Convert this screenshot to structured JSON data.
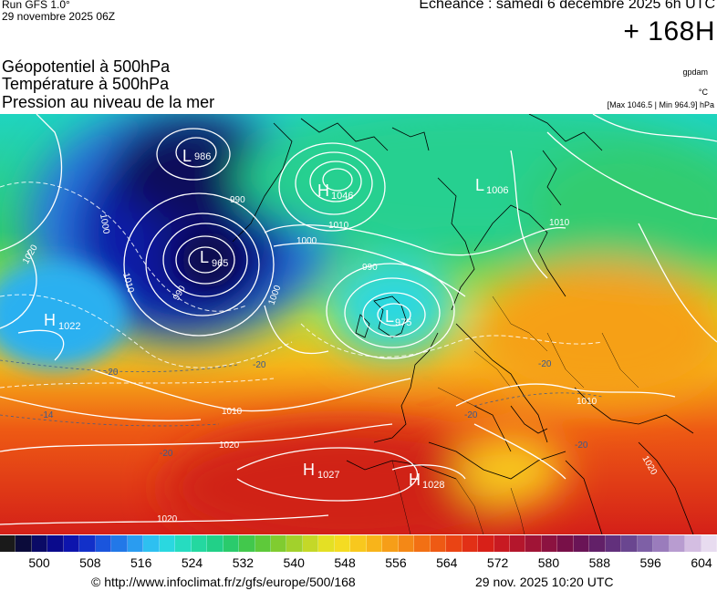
{
  "header": {
    "run": "Run GFS 1.0°",
    "run_date": "29 novembre 2025 06Z",
    "echeance": "Echéance : samedi 6 décembre 2025 6h UTC",
    "horizon": "+ 168H"
  },
  "layers": [
    "Géopotentiel à 500hPa",
    "Température à 500hPa",
    "Pression au niveau de la mer"
  ],
  "units": {
    "geopotential": "gpdam",
    "temperature": "°C",
    "minmax": "[Max 1046.5 | Min 964.9] hPa"
  },
  "pressure_centers": [
    {
      "type": "L",
      "value": "986"
    },
    {
      "type": "H",
      "value": "1046"
    },
    {
      "type": "L",
      "value": "1006"
    },
    {
      "type": "L",
      "value": "965"
    },
    {
      "type": "H",
      "value": "1022"
    },
    {
      "type": "L",
      "value": "975"
    },
    {
      "type": "H",
      "value": "1027"
    },
    {
      "type": "H",
      "value": "1028"
    }
  ],
  "isobar_labels": [
    "990",
    "1000",
    "1010",
    "1020",
    "990",
    "1000",
    "1010",
    "1010",
    "1020",
    "1020",
    "1000",
    "990",
    "1010",
    "1010",
    "1020"
  ],
  "temperature_labels": [
    "-20",
    "-20",
    "-20",
    "-20",
    "-14",
    "-20",
    "-20"
  ],
  "colorbar": {
    "colors": [
      "#1a1a1a",
      "#0b0b3a",
      "#0a0a66",
      "#0a0a8c",
      "#0d14ad",
      "#1230c9",
      "#1a55dd",
      "#2278e8",
      "#2a9cf0",
      "#2ec0f0",
      "#2ad8e0",
      "#26dcc0",
      "#24d8a0",
      "#22d088",
      "#2acb6c",
      "#42c84c",
      "#5ec93a",
      "#80cc30",
      "#a2d12c",
      "#c4d828",
      "#e4e024",
      "#f4dc22",
      "#f8c81e",
      "#f8b41a",
      "#f69e18",
      "#f48816",
      "#f27014",
      "#ee5a14",
      "#ea4414",
      "#e23016",
      "#d82018",
      "#c81a22",
      "#b4162c",
      "#a01436",
      "#8c1240",
      "#781048",
      "#6a1456",
      "#622068",
      "#62307c",
      "#6a4690",
      "#7e60a6",
      "#9a7cbc",
      "#b89cd0",
      "#d4bee2",
      "#e8dcf0"
    ],
    "ticks": [
      "500",
      "508",
      "516",
      "524",
      "532",
      "540",
      "548",
      "556",
      "564",
      "572",
      "580",
      "588",
      "596",
      "604"
    ]
  },
  "footer": {
    "copyright": "© http://www.infoclimat.fr/z/gfs/europe/500/168",
    "date": "29 nov. 2025 10:20 UTC"
  }
}
